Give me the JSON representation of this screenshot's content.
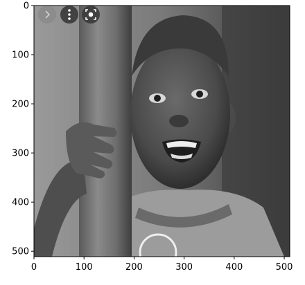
{
  "chart_data": {
    "type": "image",
    "title": "",
    "xlabel": "",
    "ylabel": "",
    "xlim": [
      0,
      511
    ],
    "ylim": [
      511,
      0
    ],
    "x_ticks": [
      0,
      100,
      200,
      300,
      400,
      500
    ],
    "y_ticks": [
      0,
      100,
      200,
      300,
      400,
      500
    ],
    "grid": false,
    "colormap": "gray",
    "image_content": "grayscale photo of a smiling child hugging a wooden pole",
    "overlay_buttons": [
      {
        "icon": "chevron-right-icon"
      },
      {
        "icon": "more-vertical-icon"
      },
      {
        "icon": "lens-scan-icon"
      }
    ]
  }
}
